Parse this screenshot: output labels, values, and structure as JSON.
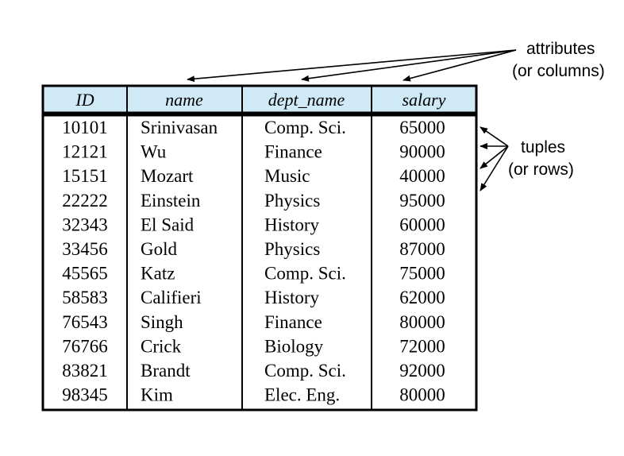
{
  "annotations": {
    "attributes_line1": "attributes",
    "attributes_line2": "(or columns)",
    "tuples_line1": "tuples",
    "tuples_line2": "(or rows)"
  },
  "colors": {
    "header_fill": "#cfe9f7",
    "border": "#000000",
    "arrow": "#000000"
  },
  "table": {
    "headers": [
      "ID",
      "name",
      "dept_name",
      "salary"
    ],
    "rows": [
      [
        "10101",
        "Srinivasan",
        "Comp. Sci.",
        "65000"
      ],
      [
        "12121",
        "Wu",
        "Finance",
        "90000"
      ],
      [
        "15151",
        "Mozart",
        "Music",
        "40000"
      ],
      [
        "22222",
        "Einstein",
        "Physics",
        "95000"
      ],
      [
        "32343",
        "El Said",
        "History",
        "60000"
      ],
      [
        "33456",
        "Gold",
        "Physics",
        "87000"
      ],
      [
        "45565",
        "Katz",
        "Comp. Sci.",
        "75000"
      ],
      [
        "58583",
        "Califieri",
        "History",
        "62000"
      ],
      [
        "76543",
        "Singh",
        "Finance",
        "80000"
      ],
      [
        "76766",
        "Crick",
        "Biology",
        "72000"
      ],
      [
        "83821",
        "Brandt",
        "Comp. Sci.",
        "92000"
      ],
      [
        "98345",
        "Kim",
        "Elec. Eng.",
        "80000"
      ]
    ]
  }
}
